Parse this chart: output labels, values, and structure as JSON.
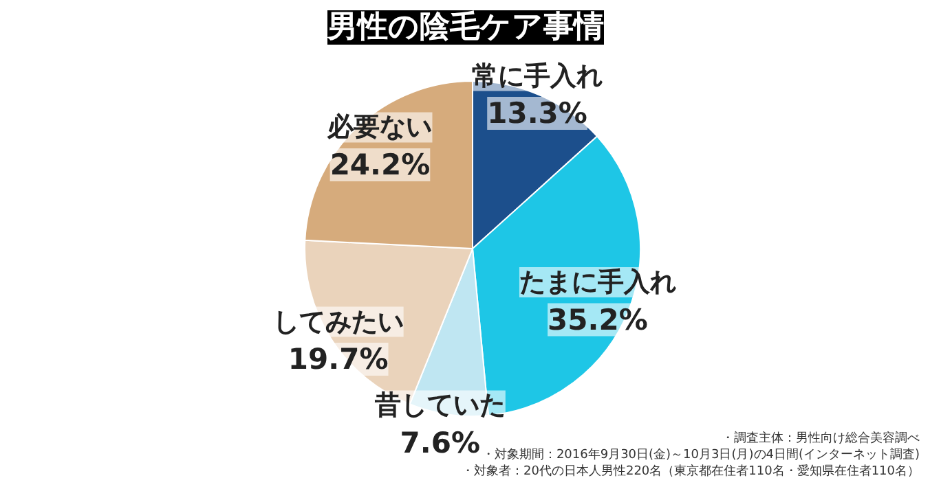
{
  "chart_data": {
    "type": "pie",
    "title": "男性の陰毛ケア事情",
    "categories": [
      "常に手入れ",
      "たまに手入れ",
      "昔していた",
      "してみたい",
      "必要ない"
    ],
    "values": [
      13.3,
      35.2,
      7.6,
      19.7,
      24.2
    ],
    "value_labels": [
      "13.3%",
      "35.2%",
      "7.6%",
      "19.7%",
      "24.2%"
    ],
    "colors": [
      "#1c4f8c",
      "#1ec6e6",
      "#bfe6f2",
      "#ead3bb",
      "#d6ab7c"
    ],
    "annotations": [
      "・調査主体：男性向け総合美容調べ",
      "・対象期間：2016年9月30日(金)～10月3日(月)の4日間(インターネット調査)",
      "・対象者：20代の日本人男性220名（東京都在住者110名・愛知県在住者110名）"
    ],
    "data_labels": false
  }
}
